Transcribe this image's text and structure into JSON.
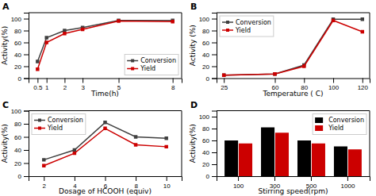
{
  "chart_data": [
    {
      "type": "line",
      "title": "A",
      "x_label": "Time(h)",
      "y_label": "Activity(%)",
      "x": [
        0.5,
        1,
        2,
        3,
        5,
        8
      ],
      "xlim": [
        0,
        8.5
      ],
      "xticks": [
        0.5,
        1,
        2,
        3,
        5,
        8
      ],
      "ylim": [
        0,
        110
      ],
      "yticks": [
        0,
        20,
        40,
        60,
        80,
        100
      ],
      "grid": false,
      "legend": "lower right",
      "series": [
        {
          "name": "Conversion",
          "color": "#404040",
          "marker": "square",
          "line_style": "solid",
          "values": [
            28,
            68,
            80,
            85,
            97,
            97
          ]
        },
        {
          "name": "Yield",
          "color": "#cc0000",
          "marker": "square",
          "line_style": "solid",
          "values": [
            15,
            60,
            75,
            82,
            96,
            95
          ]
        }
      ]
    },
    {
      "type": "line",
      "title": "B",
      "x_label": "Temperature ( C)",
      "y_label": "Activity (%)",
      "x": [
        25,
        60,
        80,
        100,
        120
      ],
      "xlim": [
        20,
        125
      ],
      "xticks": [
        25,
        60,
        80,
        100,
        120
      ],
      "ylim": [
        0,
        110
      ],
      "yticks": [
        0,
        20,
        40,
        60,
        80,
        100
      ],
      "grid": false,
      "legend": "upper left",
      "series": [
        {
          "name": "Conversion",
          "color": "#404040",
          "marker": "square",
          "line_style": "solid",
          "values": [
            5,
            7,
            22,
            99,
            99
          ]
        },
        {
          "name": "Yield",
          "color": "#cc0000",
          "marker": "square",
          "line_style": "solid",
          "values": [
            5,
            7,
            20,
            97,
            78
          ]
        }
      ]
    },
    {
      "type": "line",
      "title": "C",
      "x_label": "Dosage of HCOOH (equiv)",
      "y_label": "Activity(%)",
      "x": [
        2,
        4,
        6,
        8,
        10
      ],
      "xlim": [
        1,
        11
      ],
      "xticks": [
        2,
        4,
        6,
        8,
        10
      ],
      "ylim": [
        0,
        100
      ],
      "yticks": [
        0,
        20,
        40,
        60,
        80,
        100
      ],
      "grid": false,
      "legend": "upper left",
      "series": [
        {
          "name": "Conversion",
          "color": "#404040",
          "marker": "square",
          "line_style": "solid",
          "values": [
            25,
            40,
            82,
            60,
            58
          ]
        },
        {
          "name": "Yield",
          "color": "#cc0000",
          "marker": "square",
          "line_style": "solid",
          "values": [
            16,
            35,
            73,
            48,
            45
          ]
        }
      ]
    },
    {
      "type": "bar",
      "title": "D",
      "x_label": "Stirring speed(rpm)",
      "y_label": "Activity(%)",
      "categories": [
        "100",
        "300",
        "500",
        "1000"
      ],
      "ylim": [
        0,
        110
      ],
      "yticks": [
        0,
        20,
        40,
        60,
        80,
        100
      ],
      "grid": false,
      "legend": "upper right",
      "series": [
        {
          "name": "Conversion",
          "color": "#000000",
          "values": [
            60,
            82,
            60,
            50
          ]
        },
        {
          "name": "Yield",
          "color": "#cc0000",
          "values": [
            55,
            73,
            55,
            45
          ]
        }
      ]
    }
  ]
}
